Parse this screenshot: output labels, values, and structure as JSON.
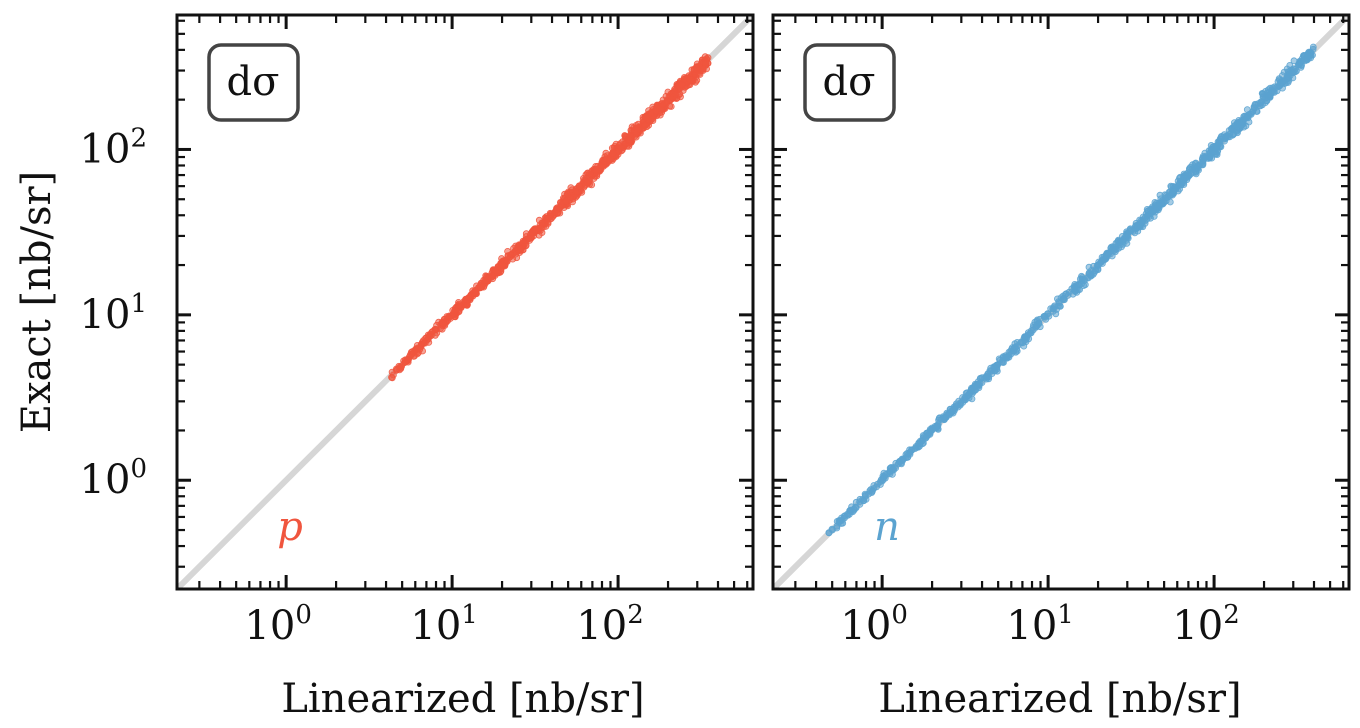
{
  "chart_data": [
    {
      "type": "scatter",
      "panel": "left",
      "badge": "dσ",
      "species_label": "p",
      "xlabel": "Linearized [nb/sr]",
      "ylabel": "Exact [nb/sr]",
      "xscale": "log",
      "yscale": "log",
      "xlim": [
        0.22,
        650
      ],
      "ylim": [
        0.22,
        650
      ],
      "x_tick_labels": [
        {
          "value": 1,
          "base": "10",
          "exp": "0"
        },
        {
          "value": 10,
          "base": "10",
          "exp": "1"
        },
        {
          "value": 100,
          "base": "10",
          "exp": "2"
        }
      ],
      "y_tick_labels": [
        {
          "value": 1,
          "base": "10",
          "exp": "0"
        },
        {
          "value": 10,
          "base": "10",
          "exp": "1"
        },
        {
          "value": 100,
          "base": "10",
          "exp": "2"
        }
      ],
      "reference_line": {
        "name": "y = x",
        "color": "#d6d6d6"
      },
      "series": [
        {
          "name": "p",
          "color": "#f0553e",
          "x_range": [
            4.3,
            350
          ],
          "spread": 0.03
        }
      ]
    },
    {
      "type": "scatter",
      "panel": "right",
      "badge": "dσ",
      "species_label": "n",
      "xlabel": "Linearized [nb/sr]",
      "ylabel": "",
      "xscale": "log",
      "yscale": "log",
      "xlim": [
        0.22,
        650
      ],
      "ylim": [
        0.22,
        650
      ],
      "x_tick_labels": [
        {
          "value": 1,
          "base": "10",
          "exp": "0"
        },
        {
          "value": 10,
          "base": "10",
          "exp": "1"
        },
        {
          "value": 100,
          "base": "10",
          "exp": "2"
        }
      ],
      "y_tick_labels": [],
      "reference_line": {
        "name": "y = x",
        "color": "#d6d6d6"
      },
      "series": [
        {
          "name": "n",
          "color": "#5ba3d0",
          "x_range": [
            0.45,
            400
          ],
          "spread": 0.025
        }
      ]
    }
  ]
}
